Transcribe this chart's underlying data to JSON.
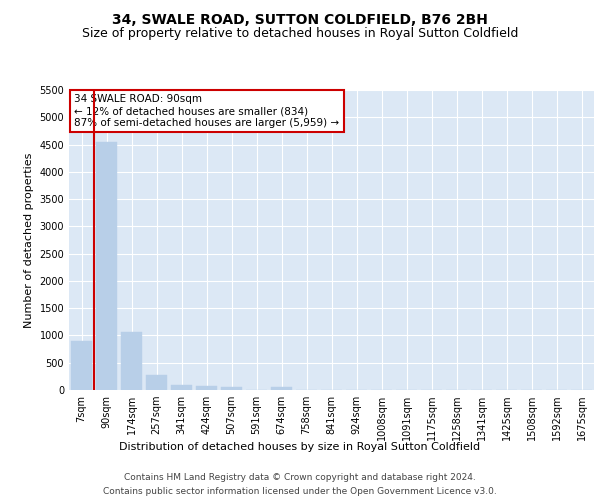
{
  "title": "34, SWALE ROAD, SUTTON COLDFIELD, B76 2BH",
  "subtitle": "Size of property relative to detached houses in Royal Sutton Coldfield",
  "xlabel": "Distribution of detached houses by size in Royal Sutton Coldfield",
  "ylabel": "Number of detached properties",
  "categories": [
    "7sqm",
    "90sqm",
    "174sqm",
    "257sqm",
    "341sqm",
    "424sqm",
    "507sqm",
    "591sqm",
    "674sqm",
    "758sqm",
    "841sqm",
    "924sqm",
    "1008sqm",
    "1091sqm",
    "1175sqm",
    "1258sqm",
    "1341sqm",
    "1425sqm",
    "1508sqm",
    "1592sqm",
    "1675sqm"
  ],
  "values": [
    900,
    4550,
    1060,
    280,
    90,
    70,
    50,
    0,
    60,
    0,
    0,
    0,
    0,
    0,
    0,
    0,
    0,
    0,
    0,
    0,
    0
  ],
  "bar_color": "#b8cfe8",
  "bar_edgecolor": "#b8cfe8",
  "vline_color": "#cc0000",
  "annotation_text": "34 SWALE ROAD: 90sqm\n← 12% of detached houses are smaller (834)\n87% of semi-detached houses are larger (5,959) →",
  "annotation_box_color": "#ffffff",
  "annotation_box_edgecolor": "#cc0000",
  "ylim": [
    0,
    5500
  ],
  "yticks": [
    0,
    500,
    1000,
    1500,
    2000,
    2500,
    3000,
    3500,
    4000,
    4500,
    5000,
    5500
  ],
  "background_color": "#dce8f5",
  "footer1": "Contains HM Land Registry data © Crown copyright and database right 2024.",
  "footer2": "Contains public sector information licensed under the Open Government Licence v3.0.",
  "title_fontsize": 10,
  "subtitle_fontsize": 9,
  "axis_label_fontsize": 8,
  "tick_fontsize": 7,
  "annotation_fontsize": 7.5,
  "footer_fontsize": 6.5
}
